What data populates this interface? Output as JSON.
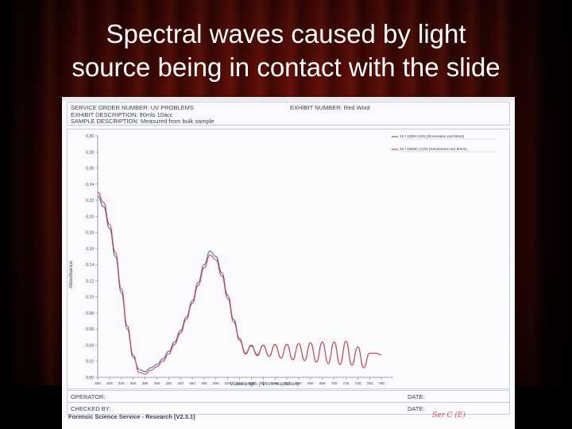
{
  "slide": {
    "title_line1": "Spectral waves caused by light",
    "title_line2": "source being in contact with the slide"
  },
  "report": {
    "service_order": "SERVICE ORDER NUMBER: UV PROBLEMS",
    "exhibit_number": "EXHIBIT NUMBER: Red Wool",
    "exhibit_description": "EXHIBIT DESCRIPTION: 90mls 10acc",
    "sample_description": "SAMPLE DESCRIPTION: Measured from bulk sample",
    "operator_label": "OPERATOR:",
    "checked_label": "CHECKED BY:",
    "date_label_1": "DATE:",
    "date_label_2": "DATE:",
    "footer": "Forensic Science Service - Research [V2.3.1]",
    "handwritten_note": "Ser C (E)"
  },
  "colors": {
    "series_blue": "#4a6fb0",
    "series_red": "#d9484d",
    "axis": "#7d8396",
    "text": "#38405a"
  },
  "chart_data": {
    "type": "line",
    "ylabel": "Absorbance",
    "xlabel": "Wavelength ( 1 nm resolution)",
    "ylim": [
      0.0,
      0.3
    ],
    "xlim": [
      300,
      800
    ],
    "y_ticks": [
      "0.00",
      "0.02",
      "0.04",
      "0.06",
      "0.08",
      "0.10",
      "0.12",
      "0.14",
      "0.16",
      "0.18",
      "0.20",
      "0.22",
      "0.24",
      "0.26",
      "0.28",
      "0.30"
    ],
    "x_ticks": [
      "300",
      "320",
      "340",
      "360",
      "380",
      "400",
      "420",
      "440",
      "460",
      "480",
      "500",
      "520",
      "540",
      "560",
      "580",
      "600",
      "620",
      "640",
      "660",
      "680",
      "700",
      "720",
      "740",
      "760",
      "780"
    ],
    "legend_position": "top-right",
    "series": [
      {
        "name": "23 / 1608.CON (Slovenians red 90ms)",
        "color_key": "series_blue",
        "x": [
          300,
          310,
          320,
          330,
          340,
          350,
          360,
          370,
          380,
          390,
          400,
          410,
          420,
          430,
          440,
          450,
          460,
          470,
          480,
          490,
          500,
          510,
          520,
          530,
          540,
          550,
          560,
          570,
          580,
          590,
          600,
          610,
          620,
          630,
          640,
          650,
          660,
          670,
          680,
          690,
          700,
          710,
          720,
          730,
          740,
          750,
          760,
          770,
          780
        ],
        "values": [
          0.225,
          0.212,
          0.185,
          0.15,
          0.105,
          0.06,
          0.025,
          0.01,
          0.007,
          0.012,
          0.016,
          0.023,
          0.032,
          0.044,
          0.058,
          0.075,
          0.095,
          0.118,
          0.14,
          0.157,
          0.15,
          0.13,
          0.102,
          0.072,
          0.048,
          0.03,
          0.04,
          0.028,
          0.04,
          0.026,
          0.041,
          0.024,
          0.041,
          0.022,
          0.042,
          0.021,
          0.043,
          0.019,
          0.044,
          0.017,
          0.044,
          0.016,
          0.045,
          0.015,
          0.038,
          0.012,
          0.03,
          0.03,
          0.028
        ]
      },
      {
        "name": "24 / 1609C.CON (Slovenians red 90ms)",
        "color_key": "series_red",
        "x": [
          300,
          310,
          320,
          330,
          340,
          350,
          360,
          370,
          380,
          390,
          400,
          410,
          420,
          430,
          440,
          450,
          460,
          470,
          480,
          490,
          500,
          510,
          520,
          530,
          540,
          550,
          560,
          570,
          580,
          590,
          600,
          610,
          620,
          630,
          640,
          650,
          660,
          670,
          680,
          690,
          700,
          710,
          720,
          730,
          740,
          750,
          760,
          770,
          780
        ],
        "values": [
          0.23,
          0.217,
          0.19,
          0.155,
          0.11,
          0.064,
          0.028,
          0.006,
          0.004,
          0.009,
          0.013,
          0.02,
          0.029,
          0.041,
          0.055,
          0.072,
          0.092,
          0.114,
          0.136,
          0.152,
          0.146,
          0.126,
          0.098,
          0.069,
          0.046,
          0.029,
          0.039,
          0.027,
          0.04,
          0.026,
          0.041,
          0.024,
          0.041,
          0.022,
          0.042,
          0.021,
          0.043,
          0.019,
          0.044,
          0.017,
          0.044,
          0.016,
          0.045,
          0.015,
          0.038,
          0.012,
          0.03,
          0.03,
          0.028
        ]
      }
    ]
  }
}
